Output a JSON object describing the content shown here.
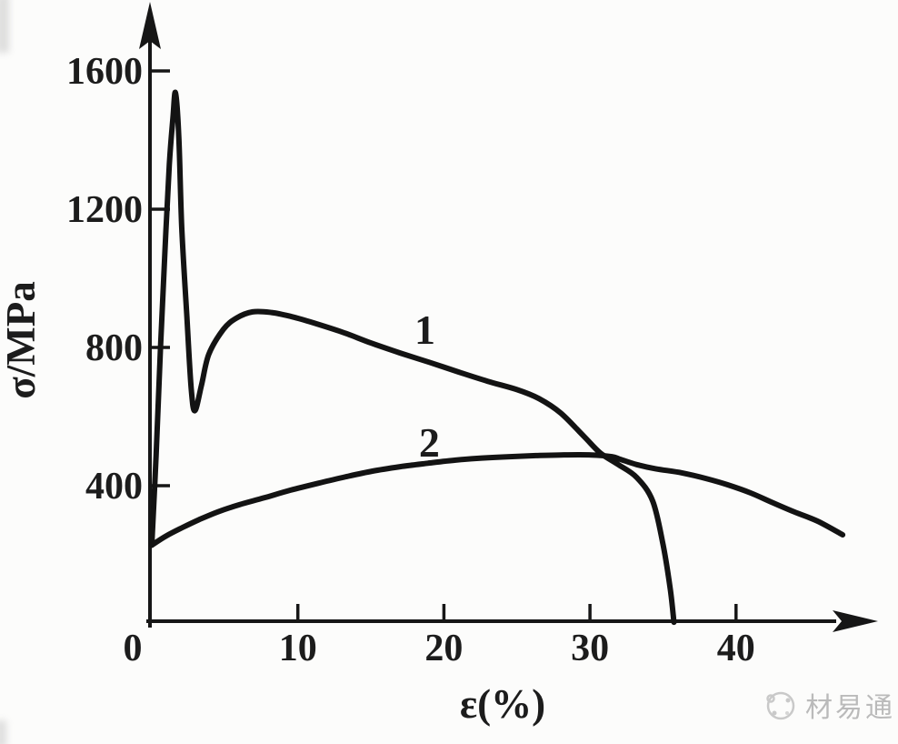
{
  "figure": {
    "background": "#fcfcfb",
    "ink_color": "#161616"
  },
  "chart_data": {
    "type": "line",
    "title": "",
    "xlabel": "ε(%)",
    "ylabel": "σ/MPa",
    "xlim": [
      0,
      50
    ],
    "ylim": [
      0,
      1800
    ],
    "x_ticks": [
      0,
      10,
      20,
      30,
      40
    ],
    "y_ticks": [
      400,
      800,
      1200,
      1600
    ],
    "grid": false,
    "legend_position": "labels-on-curves",
    "series": [
      {
        "name": "1",
        "label": {
          "text": "1",
          "x": 18.7,
          "y": 853
        },
        "points": [
          [
            0,
            228
          ],
          [
            0.3,
            490
          ],
          [
            0.6,
            800
          ],
          [
            0.9,
            1080
          ],
          [
            1.2,
            1330
          ],
          [
            1.45,
            1465
          ],
          [
            1.62,
            1537
          ],
          [
            1.85,
            1410
          ],
          [
            2.05,
            1150
          ],
          [
            2.4,
            890
          ],
          [
            2.7,
            680
          ],
          [
            2.95,
            617
          ],
          [
            3.4,
            690
          ],
          [
            3.9,
            780
          ],
          [
            4.9,
            852
          ],
          [
            5.8,
            885
          ],
          [
            6.9,
            903
          ],
          [
            8.2,
            901
          ],
          [
            9.5,
            890
          ],
          [
            11,
            872
          ],
          [
            13,
            845
          ],
          [
            15,
            813
          ],
          [
            17,
            784
          ],
          [
            19,
            757
          ],
          [
            21,
            729
          ],
          [
            23,
            702
          ],
          [
            25,
            678
          ],
          [
            26.5,
            652
          ],
          [
            28,
            610
          ],
          [
            29.6,
            542
          ],
          [
            30.7,
            495
          ],
          [
            31.9,
            462
          ],
          [
            33.2,
            424
          ],
          [
            34.3,
            355
          ],
          [
            35.0,
            230
          ],
          [
            35.5,
            100
          ],
          [
            35.75,
            5
          ]
        ]
      },
      {
        "name": "2",
        "label": {
          "text": "2",
          "x": 19.0,
          "y": 526
        },
        "points": [
          [
            0,
            228
          ],
          [
            1,
            255
          ],
          [
            2.1,
            279
          ],
          [
            3.2,
            301
          ],
          [
            4.5,
            324
          ],
          [
            6,
            345
          ],
          [
            7.7,
            365
          ],
          [
            9.5,
            387
          ],
          [
            11.4,
            407
          ],
          [
            13.2,
            425
          ],
          [
            15.1,
            442
          ],
          [
            17,
            455
          ],
          [
            18.9,
            465
          ],
          [
            20.8,
            474
          ],
          [
            22.6,
            480
          ],
          [
            24.5,
            484
          ],
          [
            26.3,
            487
          ],
          [
            28,
            489
          ],
          [
            30.1,
            489
          ],
          [
            31.5,
            484
          ],
          [
            32.1,
            476
          ],
          [
            33.2,
            461
          ],
          [
            34.5,
            449
          ],
          [
            36.3,
            437
          ],
          [
            38,
            420
          ],
          [
            39.4,
            403
          ],
          [
            41,
            379
          ],
          [
            42.5,
            351
          ],
          [
            44,
            324
          ],
          [
            45.6,
            297
          ],
          [
            47.3,
            258
          ]
        ]
      }
    ]
  },
  "watermark": {
    "text": "材易通",
    "icon": "gear-icon",
    "color": "#8f8f8f"
  }
}
